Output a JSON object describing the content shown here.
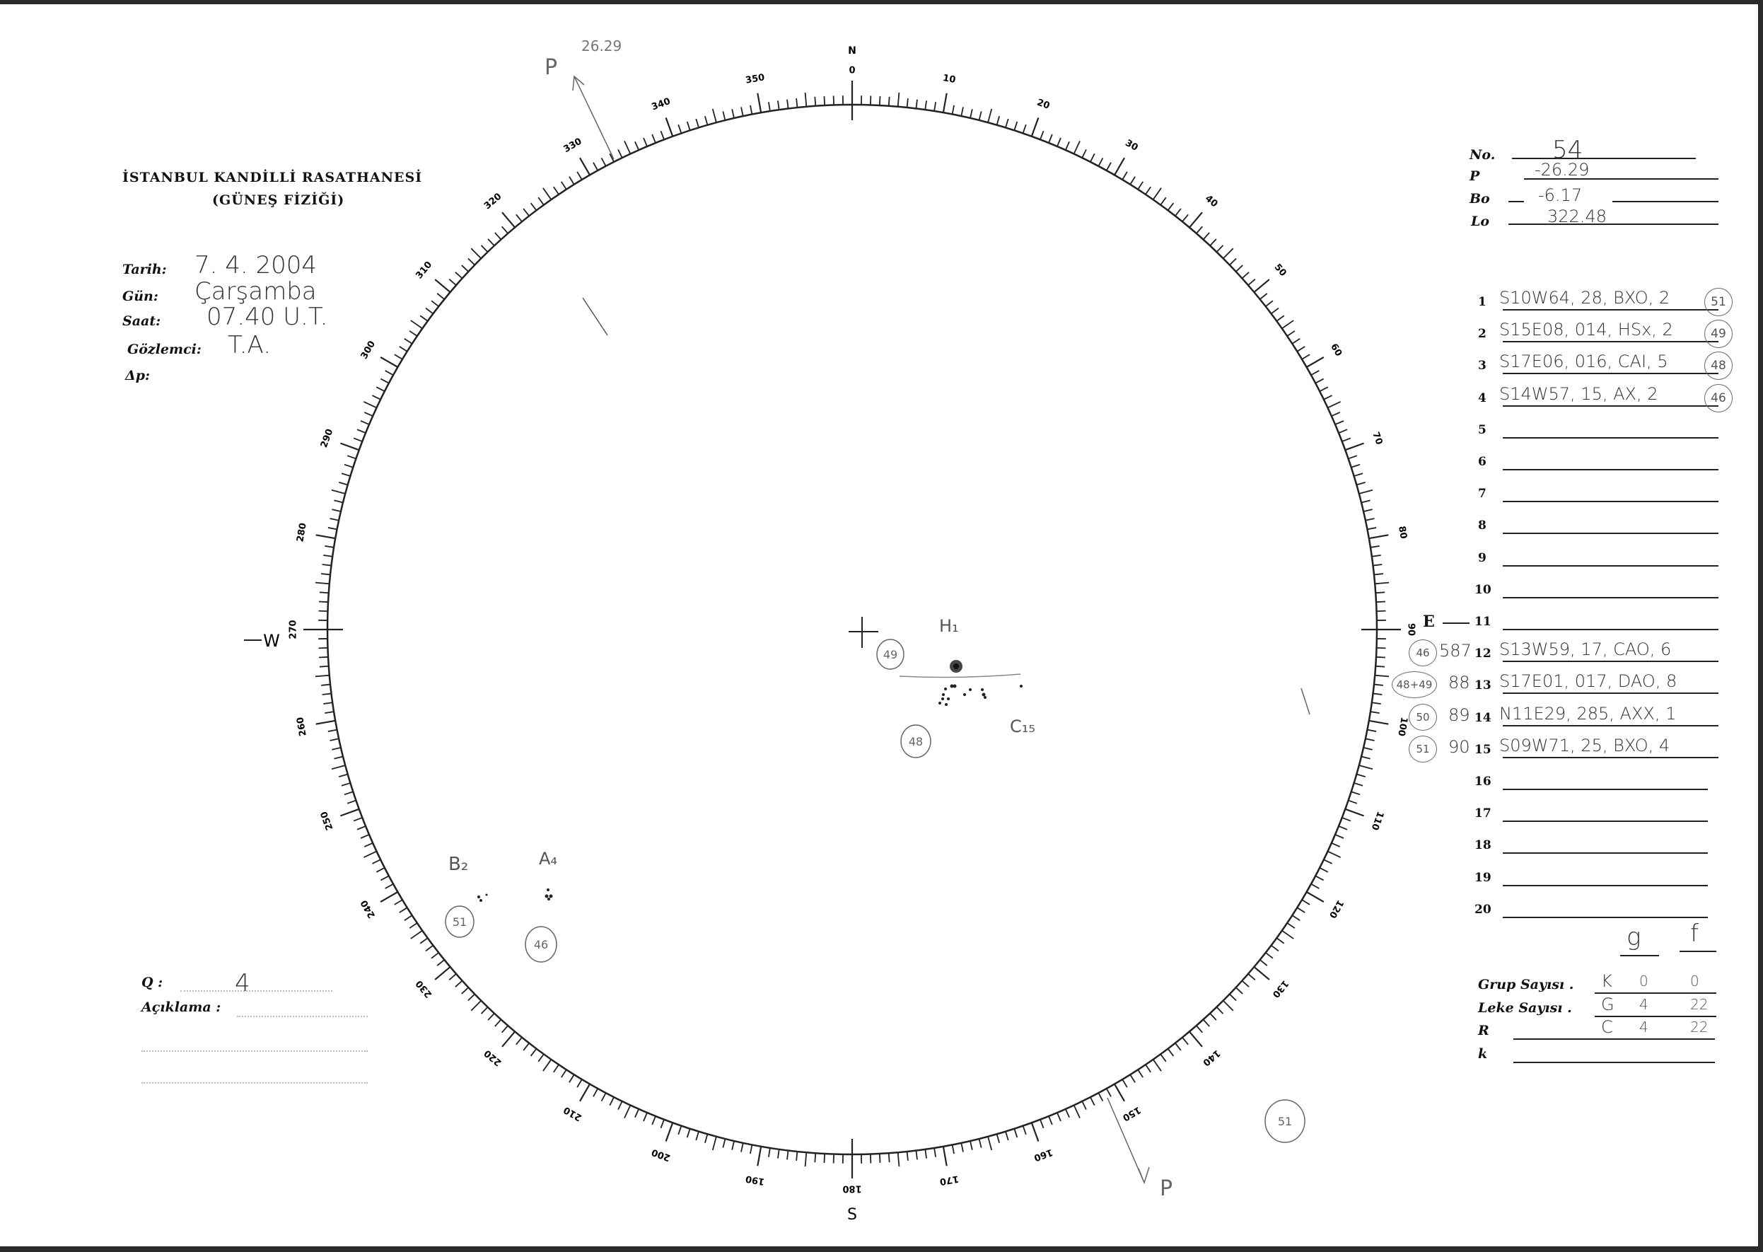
{
  "header": {
    "institution": "İSTANBUL KANDİLLİ RASATHANESİ",
    "department": "(GÜNEŞ FİZİĞİ)"
  },
  "observation": {
    "date_label": "Tarih:",
    "date": "7. 4. 2004",
    "day_label": "Gün:",
    "day": "Çarşamba",
    "time_label": "Saat:",
    "time": "07.40 U.T.",
    "observer_label": "Gözlemci:",
    "observer": "T.A.",
    "delta_p_label": "Δp:"
  },
  "ephemeris": {
    "no_label": "No.",
    "no": "54",
    "p_label": "P",
    "p": "-26.29",
    "bo_label": "Bo",
    "bo": "-6.17",
    "lo_label": "Lo",
    "lo": "322.48"
  },
  "groups": [
    {
      "n": "1",
      "entry": "S10W64, 28, BXO, 2",
      "circled": "51",
      "prefix": "",
      "circled_left": ""
    },
    {
      "n": "2",
      "entry": "S15E08, 014, HSx, 2",
      "circled": "49",
      "prefix": "",
      "circled_left": ""
    },
    {
      "n": "3",
      "entry": "S17E06, 016, CAI, 5",
      "circled": "48",
      "prefix": "",
      "circled_left": ""
    },
    {
      "n": "4",
      "entry": "S14W57, 15, AX, 2",
      "circled": "46",
      "prefix": "",
      "circled_left": ""
    },
    {
      "n": "5",
      "entry": "",
      "circled": "",
      "prefix": "",
      "circled_left": ""
    },
    {
      "n": "6",
      "entry": "",
      "circled": "",
      "prefix": "",
      "circled_left": ""
    },
    {
      "n": "7",
      "entry": "",
      "circled": "",
      "prefix": "",
      "circled_left": ""
    },
    {
      "n": "8",
      "entry": "",
      "circled": "",
      "prefix": "",
      "circled_left": ""
    },
    {
      "n": "9",
      "entry": "",
      "circled": "",
      "prefix": "",
      "circled_left": ""
    },
    {
      "n": "10",
      "entry": "",
      "circled": "",
      "prefix": "",
      "circled_left": ""
    },
    {
      "n": "11",
      "entry": "",
      "circled": "",
      "prefix": "",
      "circled_left": ""
    },
    {
      "n": "12",
      "entry": "S13W59, 17, CAO, 6",
      "circled": "",
      "prefix": "587",
      "circled_left": "46"
    },
    {
      "n": "13",
      "entry": "S17E01, 017, DAO, 8",
      "circled": "",
      "prefix": "88",
      "circled_left": "48+49"
    },
    {
      "n": "14",
      "entry": "N11E29, 285, AXX, 1",
      "circled": "",
      "prefix": "89",
      "circled_left": "50"
    },
    {
      "n": "15",
      "entry": "S09W71, 25, BXO, 4",
      "circled": "",
      "prefix": "90",
      "circled_left": "51"
    },
    {
      "n": "16",
      "entry": "",
      "circled": "",
      "prefix": "",
      "circled_left": ""
    },
    {
      "n": "17",
      "entry": "",
      "circled": "",
      "prefix": "",
      "circled_left": ""
    },
    {
      "n": "18",
      "entry": "",
      "circled": "",
      "prefix": "",
      "circled_left": ""
    },
    {
      "n": "19",
      "entry": "",
      "circled": "",
      "prefix": "",
      "circled_left": ""
    },
    {
      "n": "20",
      "entry": "",
      "circled": "",
      "prefix": "",
      "circled_left": ""
    }
  ],
  "counts": {
    "col_g": "g",
    "col_f": "f",
    "rows": [
      {
        "label": "Grup Sayısı .",
        "letter": "K",
        "g": "0",
        "f": "0"
      },
      {
        "label": "Leke Sayısı .",
        "letter": "G",
        "g": "4",
        "f": "22"
      },
      {
        "label": "R",
        "letter": "C",
        "g": "4",
        "f": "22"
      },
      {
        "label": "k",
        "letter": "",
        "g": "",
        "f": ""
      }
    ]
  },
  "quality": {
    "q_label": "Q :",
    "q": "4",
    "remarks_label": "Açıklama :",
    "remarks": ""
  },
  "disk": {
    "cardinal": {
      "north": "N",
      "south": "S",
      "east": "E",
      "west": "W"
    },
    "degree_labels": [
      "0",
      "10",
      "20",
      "30",
      "40",
      "50",
      "60",
      "70",
      "80",
      "90",
      "100",
      "110",
      "120",
      "130",
      "140",
      "150",
      "160",
      "170",
      "180",
      "190",
      "200",
      "210",
      "220",
      "230",
      "240",
      "250",
      "260",
      "270",
      "280",
      "290",
      "300",
      "310",
      "320",
      "330",
      "340",
      "350"
    ],
    "p_axis_top": {
      "label": "P",
      "value": "26.29"
    },
    "p_axis_bottom": {
      "label": "P"
    },
    "annotations": [
      {
        "id": "h1",
        "text": "H₁"
      },
      {
        "id": "c15",
        "text": "C₁₅"
      },
      {
        "id": "b2",
        "text": "B₂"
      },
      {
        "id": "a4",
        "text": "A₄"
      }
    ],
    "circled_marks": [
      "49",
      "48",
      "51",
      "46",
      "51"
    ],
    "ink_color": "#222222",
    "pencil_color": "#555555"
  }
}
